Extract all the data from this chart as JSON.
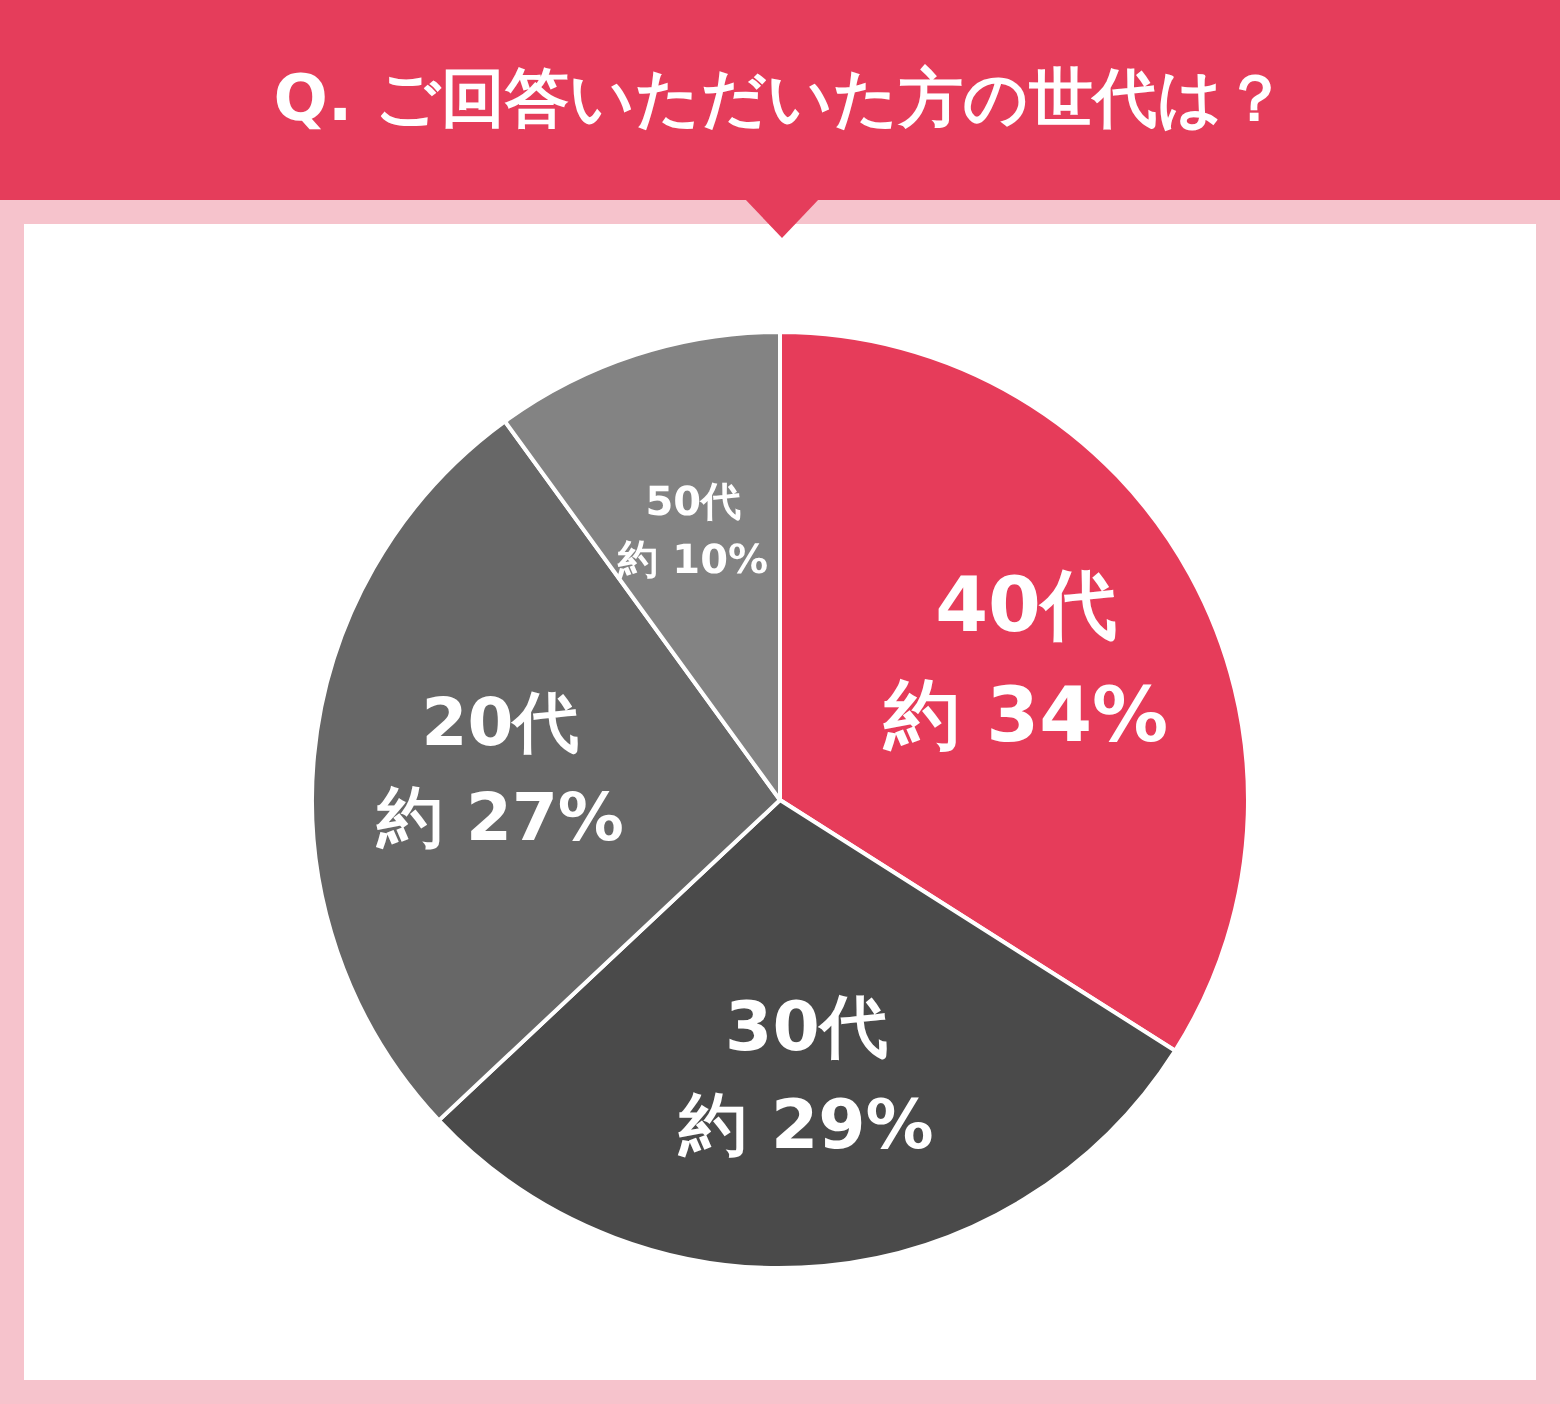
{
  "chart_data": {
    "type": "pie",
    "title": "Q. ご回答いただいた方の世代は？",
    "categories": [
      "40代",
      "30代",
      "20代",
      "50代"
    ],
    "values": [
      34,
      29,
      27,
      10
    ],
    "colors": [
      "#e63c5a",
      "#4a4a4a",
      "#676767",
      "#838383"
    ],
    "value_labels": [
      "約 34%",
      "約 29%",
      "約 27%",
      "約 10%"
    ],
    "legend": false
  }
}
